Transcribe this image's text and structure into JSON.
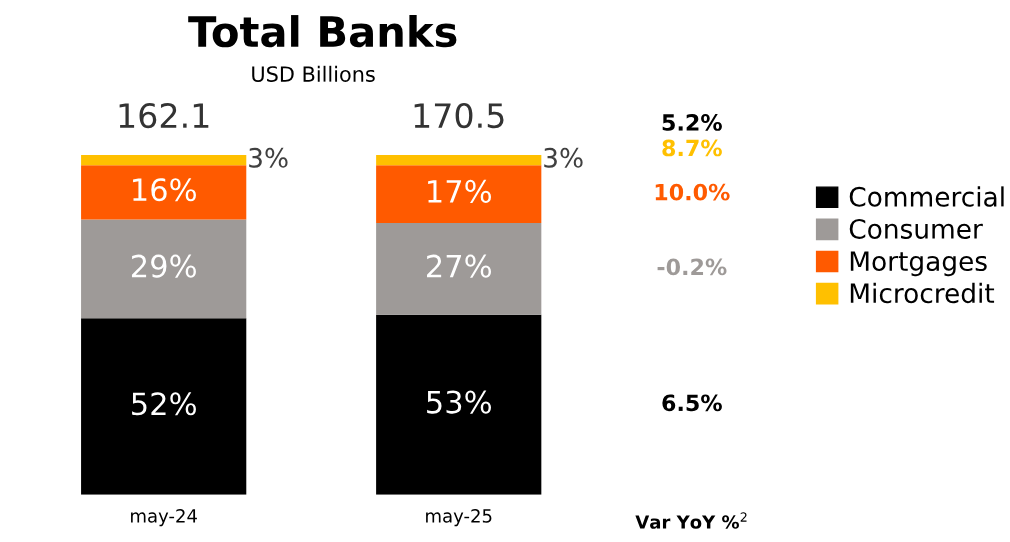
{
  "chart_data": {
    "type": "bar",
    "stacked": true,
    "title": "Total Banks",
    "subtitle": "USD Billions",
    "categories": [
      "may-24",
      "may-25"
    ],
    "series": [
      {
        "name": "Commercial",
        "color": "#000000",
        "values": [
          52,
          53
        ],
        "value_labels": [
          "52%",
          "53%"
        ]
      },
      {
        "name": "Consumer",
        "color": "#9e9a98",
        "values": [
          29,
          27
        ],
        "value_labels": [
          "29%",
          "27%"
        ]
      },
      {
        "name": "Mortgages",
        "color": "#ff5a00",
        "values": [
          16,
          17
        ],
        "value_labels": [
          "16%",
          "17%"
        ]
      },
      {
        "name": "Microcredit",
        "color": "#ffc000",
        "values": [
          3,
          3
        ],
        "value_labels": [
          "3%",
          "3%"
        ]
      }
    ],
    "annotations": [
      "162.1",
      "170.5",
      "Var YoY %$^{2}$",
      "5.2%",
      "8.7%",
      "10.0%",
      "-0.2%",
      "6.5%"
    ],
    "legend": "right"
  }
}
